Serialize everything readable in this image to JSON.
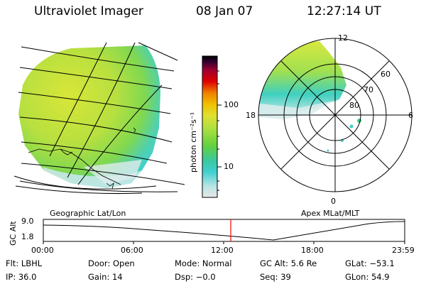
{
  "header": {
    "instrument": "Ultraviolet Imager",
    "date": "08 Jan 07",
    "time": "12:27:14 UT"
  },
  "colorbar": {
    "unit_label": "photon cm⁻²s⁻¹",
    "ticks": [
      "100",
      "10"
    ],
    "palette": [
      "#e8e8e8",
      "#b8e4e4",
      "#40d0d0",
      "#3cc8a0",
      "#60d040",
      "#a8e040",
      "#e0e030",
      "#f0c000",
      "#f08000",
      "#e00000",
      "#a00030",
      "#300030",
      "#000000"
    ]
  },
  "polar_plot": {
    "mlt_labels": [
      "12",
      "18",
      "6",
      "0"
    ],
    "lat_labels": [
      "60",
      "70",
      "80"
    ]
  },
  "projection_labels": {
    "left": "Geographic Lat/Lon",
    "right": "Apex MLat/MLT"
  },
  "altitude_strip": {
    "y_axis_label": "GC Alt",
    "y_ticks": [
      "9.0",
      "1.8"
    ],
    "x_ticks": [
      "00:00",
      "06:00",
      "12:00",
      "18:00",
      "23:59"
    ],
    "marker_color": "#ff0000"
  },
  "metadata": {
    "row1": [
      {
        "key": "Flt:",
        "value": "LBHL"
      },
      {
        "key": "Door:",
        "value": "Open"
      },
      {
        "key": "Mode:",
        "value": "Normal"
      },
      {
        "key": "GC Alt:",
        "value": "5.6 Re"
      },
      {
        "key": "GLat:",
        "value": "−53.1"
      }
    ],
    "row2": [
      {
        "key": "IP:",
        "value": "36.0"
      },
      {
        "key": "Gain:",
        "value": "14"
      },
      {
        "key": "Dsp:",
        "value": "−0.0"
      },
      {
        "key": "Seq:",
        "value": "39"
      },
      {
        "key": "GLon:",
        "value": "54.9"
      }
    ]
  }
}
